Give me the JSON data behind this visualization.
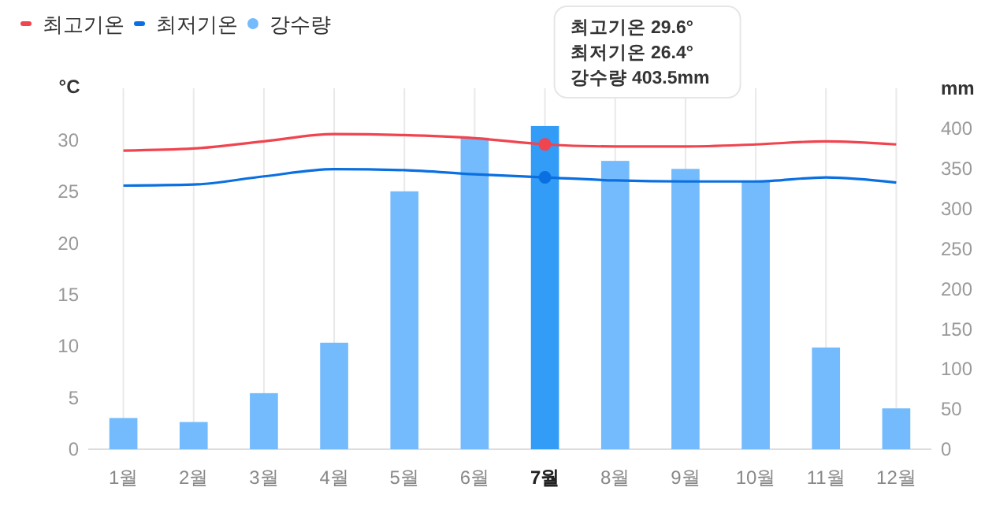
{
  "chart_data": {
    "type": "bar",
    "ylabel": "°C",
    "y2label": "mm",
    "categories": [
      "1월",
      "2월",
      "3월",
      "4월",
      "5월",
      "6월",
      "7월",
      "8월",
      "9월",
      "10월",
      "11월",
      "12월"
    ],
    "series": [
      {
        "name": "최고기온",
        "type": "line",
        "color": "#f0444f",
        "values": [
          29.0,
          29.2,
          29.9,
          30.6,
          30.5,
          30.2,
          29.6,
          29.4,
          29.4,
          29.6,
          29.9,
          29.6
        ]
      },
      {
        "name": "최저기온",
        "type": "line",
        "color": "#0a6fe0",
        "values": [
          25.6,
          25.7,
          26.5,
          27.2,
          27.1,
          26.7,
          26.4,
          26.1,
          26.0,
          26.0,
          26.4,
          25.9
        ]
      },
      {
        "name": "강수량",
        "axis": "y2",
        "color": "#74bbfd",
        "colors": [
          "#74bbfd",
          "#74bbfd",
          "#74bbfd",
          "#74bbfd",
          "#74bbfd",
          "#74bbfd",
          "#339cf7",
          "#74bbfd",
          "#74bbfd",
          "#74bbfd",
          "#74bbfd",
          "#74bbfd"
        ],
        "values": [
          39,
          34,
          70,
          133,
          322,
          389,
          403.5,
          360,
          350,
          335,
          127,
          51
        ]
      }
    ],
    "ylim": [
      0,
      31.5
    ],
    "yticks": [
      0,
      5,
      10,
      15,
      20,
      25,
      30
    ],
    "y2lim": [
      0,
      405
    ],
    "y2ticks": [
      0,
      50,
      100,
      150,
      200,
      250,
      300,
      350,
      400
    ],
    "grid": "x",
    "legend": "top left",
    "marker": "none",
    "line_style": "solid",
    "annotations": [
      "최고기온 29.6°",
      "최저기온 26.4°",
      "강수량 403.5mm"
    ]
  }
}
